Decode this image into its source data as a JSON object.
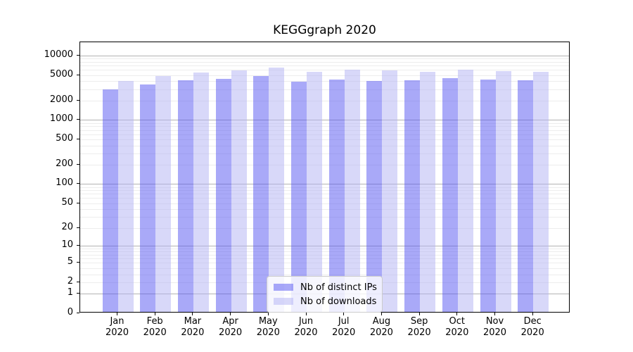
{
  "chart_data": {
    "type": "bar",
    "title": "KEGGgraph 2020",
    "categories": [
      "Jan",
      "Feb",
      "Mar",
      "Apr",
      "May",
      "Jun",
      "Jul",
      "Aug",
      "Sep",
      "Oct",
      "Nov",
      "Dec"
    ],
    "year_label": "2020",
    "series": [
      {
        "name": "Nb of distinct IPs",
        "fill": "rgba(83,83,241,0.5)",
        "display_color": "#a9a9f8",
        "values": [
          2850,
          3400,
          3950,
          4150,
          4600,
          3800,
          4050,
          3900,
          4000,
          4300,
          4050,
          3950
        ]
      },
      {
        "name": "Nb of downloads",
        "fill": "rgba(177,177,243,0.5)",
        "display_color": "#d8d8f9",
        "values": [
          3900,
          4700,
          5300,
          5700,
          6300,
          5450,
          5850,
          5650,
          5450,
          5900,
          5500,
          5400
        ]
      }
    ],
    "y_ticks": [
      0,
      1,
      2,
      5,
      10,
      20,
      50,
      100,
      200,
      500,
      1000,
      2000,
      5000,
      10000
    ],
    "y_scale": "log10(value+1)",
    "ylim": [
      0,
      15600
    ],
    "grid": true,
    "legend_position": "lower center"
  },
  "colors": {
    "grid_minor": "#ededed",
    "grid_major": "#b3b3b3",
    "axis": "#000000",
    "background": "#ffffff"
  }
}
